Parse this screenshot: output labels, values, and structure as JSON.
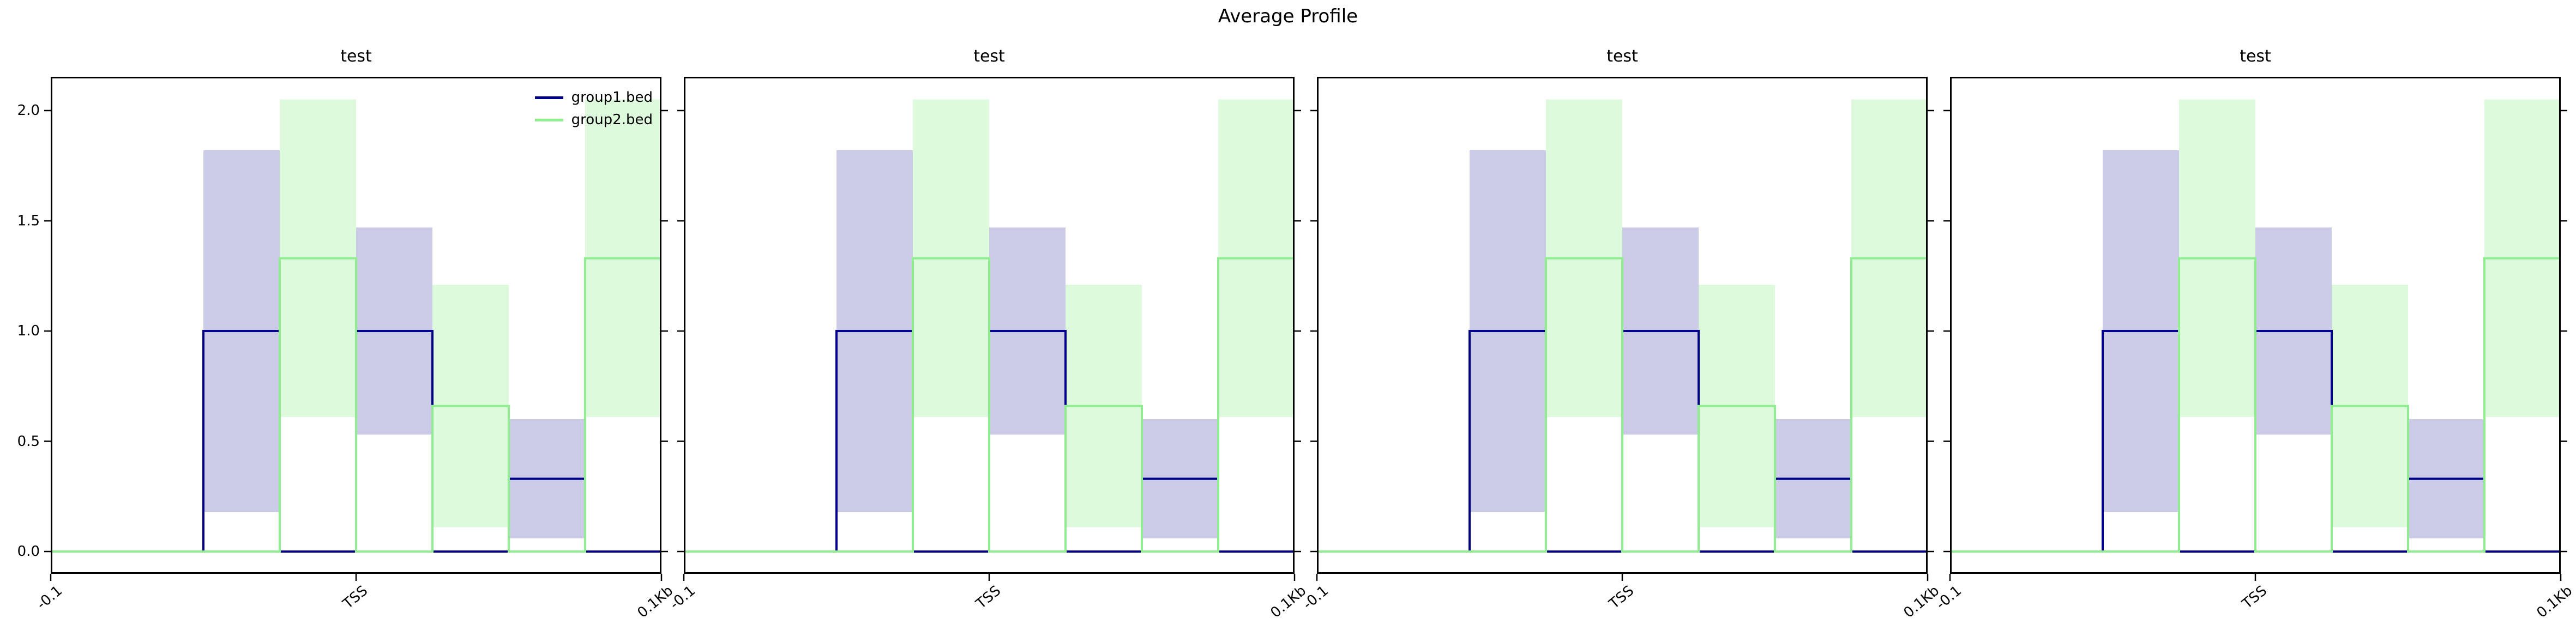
{
  "figure": {
    "suptitle": "Average Profile",
    "background_color": "#ffffff",
    "axis_color": "#000000"
  },
  "chart_data": {
    "type": "line",
    "style": "step-profile-with-stddev-bands",
    "suptitle": "Average Profile",
    "panel_titles": [
      "test",
      "test",
      "test",
      "test"
    ],
    "bins": 8,
    "x_ticks": [
      {
        "frac": 0.0,
        "label": "-0.1"
      },
      {
        "frac": 0.5,
        "label": "TSS"
      },
      {
        "frac": 1.0,
        "label": "0.1Kb"
      }
    ],
    "x_tick_rotation_deg": 40,
    "y_ticks": [
      {
        "value": 0.0,
        "label": "0.0"
      },
      {
        "value": 0.5,
        "label": "0.5"
      },
      {
        "value": 1.0,
        "label": "1.0"
      },
      {
        "value": 1.5,
        "label": "1.5"
      },
      {
        "value": 2.0,
        "label": "2.0"
      }
    ],
    "ylim": [
      -0.101,
      2.153
    ],
    "series": [
      {
        "name": "group1.bed",
        "line_color": "#00008b",
        "band_color": "rgba(0,0,139,0.20)",
        "values": [
          0,
          0,
          1.0,
          0,
          1.0,
          0,
          0.33,
          0
        ],
        "band_low": [
          0,
          0,
          0.18,
          0,
          0.53,
          0,
          0.06,
          0
        ],
        "band_high": [
          0,
          0,
          1.82,
          0,
          1.47,
          0,
          0.6,
          0
        ]
      },
      {
        "name": "group2.bed",
        "line_color": "#90ee90",
        "band_color": "rgba(144,238,144,0.30)",
        "values": [
          0,
          0,
          0,
          1.33,
          0,
          0.66,
          0,
          1.33
        ],
        "band_low": [
          0,
          0,
          0,
          0.61,
          0,
          0.11,
          0,
          0.61
        ],
        "band_high": [
          0,
          0,
          0,
          2.05,
          0,
          1.21,
          0,
          2.05
        ]
      }
    ],
    "legend": {
      "entries": [
        "group1.bed",
        "group2.bed"
      ],
      "location": "upper-right-of-first-panel"
    }
  }
}
